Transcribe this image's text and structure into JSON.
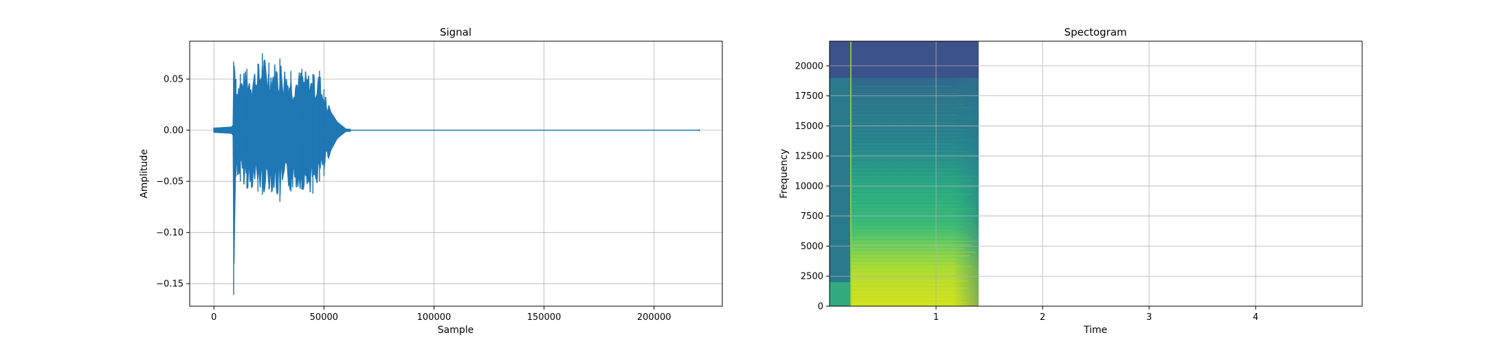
{
  "chart_data": [
    {
      "type": "line",
      "title": "Signal",
      "xlabel": "Sample",
      "ylabel": "Amplitude",
      "xlim": [
        -11000,
        231000
      ],
      "ylim": [
        -0.172,
        0.087
      ],
      "xticks": [
        0,
        50000,
        100000,
        150000,
        200000
      ],
      "xtick_labels": [
        "0",
        "50000",
        "100000",
        "150000",
        "200000"
      ],
      "yticks": [
        -0.15,
        -0.1,
        -0.05,
        0.0,
        0.05
      ],
      "ytick_labels": [
        "−0.15",
        "−0.10",
        "−0.05",
        "0.00",
        "0.05"
      ],
      "grid": true,
      "color": "#1f77b4",
      "series": [
        {
          "x": [
            0,
            8000,
            8800,
            9000,
            9200,
            10000,
            12000,
            15000,
            20000,
            22000,
            25000,
            30000,
            35000,
            40000,
            45000,
            48000,
            50000,
            53000,
            56000,
            60000,
            220500
          ],
          "y_max": [
            0.002,
            0.003,
            0.005,
            0.067,
            0.06,
            0.05,
            0.055,
            0.06,
            0.065,
            0.075,
            0.066,
            0.07,
            0.058,
            0.06,
            0.055,
            0.058,
            0.04,
            0.018,
            0.008,
            0.001,
            0.001
          ],
          "y_min": [
            -0.002,
            -0.003,
            -0.005,
            -0.161,
            -0.1,
            -0.045,
            -0.05,
            -0.057,
            -0.06,
            -0.063,
            -0.058,
            -0.07,
            -0.06,
            -0.058,
            -0.062,
            -0.05,
            -0.045,
            -0.02,
            -0.008,
            -0.001,
            -0.001
          ]
        }
      ]
    },
    {
      "type": "heatmap",
      "title": "Spectogram",
      "xlabel": "Time",
      "ylabel": "Frequency",
      "xlim": [
        0,
        5.0
      ],
      "ylim": [
        0,
        22050
      ],
      "data_extent_x": [
        0,
        1.4
      ],
      "xticks": [
        1,
        2,
        3,
        4
      ],
      "xtick_labels": [
        "1",
        "2",
        "3",
        "4"
      ],
      "yticks": [
        0,
        2500,
        5000,
        7500,
        10000,
        12500,
        15000,
        17500,
        20000
      ],
      "ytick_labels": [
        "0",
        "2500",
        "5000",
        "7500",
        "10000",
        "12500",
        "15000",
        "17500",
        "20000"
      ],
      "grid": true,
      "colormap": "viridis"
    }
  ]
}
